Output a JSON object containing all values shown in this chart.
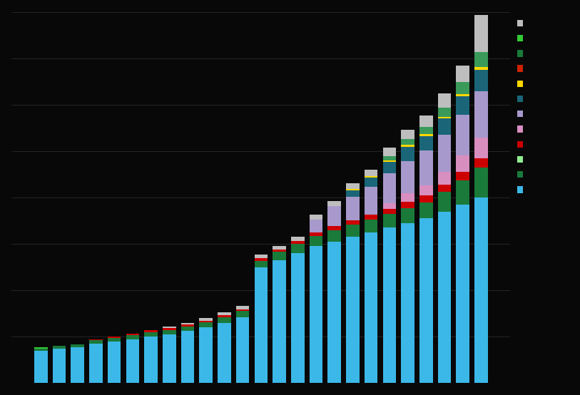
{
  "colors": {
    "light_blue": "#3BB8E8",
    "light_green": "#90EE90",
    "dark_green": "#1A7A3A",
    "red": "#CC0000",
    "pink": "#D98EC0",
    "purple": "#A899CC",
    "teal": "#1A6678",
    "yellow": "#FFD700",
    "med_green": "#3A9A5A",
    "light_gray": "#BEBEBE",
    "orange_red": "#CC2200",
    "bright_green": "#33CC33"
  },
  "bar_data": [
    {
      "blue": 1.4,
      "dark_green": 0.1,
      "red": 0.0,
      "orange_red": 0.0,
      "pink": 0.0,
      "purple": 0.0,
      "teal": 0.0,
      "yellow": 0.0,
      "med_green": 0.0,
      "bright_green": 0.05,
      "gray": 0.0
    },
    {
      "blue": 1.5,
      "dark_green": 0.1,
      "red": 0.0,
      "orange_red": 0.0,
      "pink": 0.0,
      "purple": 0.0,
      "teal": 0.0,
      "yellow": 0.0,
      "med_green": 0.0,
      "bright_green": 0.0,
      "gray": 0.0
    },
    {
      "blue": 1.55,
      "dark_green": 0.12,
      "red": 0.0,
      "orange_red": 0.0,
      "pink": 0.0,
      "purple": 0.0,
      "teal": 0.0,
      "yellow": 0.0,
      "med_green": 0.0,
      "bright_green": 0.0,
      "gray": 0.0
    },
    {
      "blue": 1.7,
      "dark_green": 0.15,
      "red": 0.03,
      "orange_red": 0.0,
      "pink": 0.0,
      "purple": 0.0,
      "teal": 0.0,
      "yellow": 0.0,
      "med_green": 0.0,
      "bright_green": 0.0,
      "gray": 0.0
    },
    {
      "blue": 1.8,
      "dark_green": 0.15,
      "red": 0.05,
      "orange_red": 0.0,
      "pink": 0.0,
      "purple": 0.0,
      "teal": 0.0,
      "yellow": 0.0,
      "med_green": 0.0,
      "bright_green": 0.0,
      "gray": 0.0
    },
    {
      "blue": 1.9,
      "dark_green": 0.18,
      "red": 0.05,
      "orange_red": 0.0,
      "pink": 0.0,
      "purple": 0.0,
      "teal": 0.0,
      "yellow": 0.0,
      "med_green": 0.0,
      "bright_green": 0.0,
      "gray": 0.0
    },
    {
      "blue": 2.0,
      "dark_green": 0.2,
      "red": 0.08,
      "orange_red": 0.0,
      "pink": 0.0,
      "purple": 0.0,
      "teal": 0.0,
      "yellow": 0.0,
      "med_green": 0.0,
      "bright_green": 0.0,
      "gray": 0.0
    },
    {
      "blue": 2.1,
      "dark_green": 0.2,
      "red": 0.08,
      "orange_red": 0.0,
      "pink": 0.0,
      "purple": 0.0,
      "teal": 0.0,
      "yellow": 0.0,
      "med_green": 0.0,
      "bright_green": 0.0,
      "gray": 0.05
    },
    {
      "blue": 2.25,
      "dark_green": 0.2,
      "red": 0.08,
      "orange_red": 0.0,
      "pink": 0.0,
      "purple": 0.0,
      "teal": 0.0,
      "yellow": 0.0,
      "med_green": 0.0,
      "bright_green": 0.0,
      "gray": 0.07
    },
    {
      "blue": 2.4,
      "dark_green": 0.22,
      "red": 0.08,
      "orange_red": 0.0,
      "pink": 0.0,
      "purple": 0.0,
      "teal": 0.0,
      "yellow": 0.0,
      "med_green": 0.0,
      "bright_green": 0.0,
      "gray": 0.1
    },
    {
      "blue": 2.6,
      "dark_green": 0.25,
      "red": 0.08,
      "orange_red": 0.0,
      "pink": 0.0,
      "purple": 0.0,
      "teal": 0.0,
      "yellow": 0.0,
      "med_green": 0.0,
      "bright_green": 0.0,
      "gray": 0.12
    },
    {
      "blue": 2.85,
      "dark_green": 0.25,
      "red": 0.08,
      "orange_red": 0.0,
      "pink": 0.0,
      "purple": 0.0,
      "teal": 0.0,
      "yellow": 0.0,
      "med_green": 0.0,
      "bright_green": 0.0,
      "gray": 0.15
    },
    {
      "blue": 5.0,
      "dark_green": 0.28,
      "red": 0.1,
      "orange_red": 0.0,
      "pink": 0.0,
      "purple": 0.0,
      "teal": 0.0,
      "yellow": 0.0,
      "med_green": 0.0,
      "bright_green": 0.0,
      "gray": 0.15
    },
    {
      "blue": 5.3,
      "dark_green": 0.35,
      "red": 0.12,
      "orange_red": 0.0,
      "pink": 0.0,
      "purple": 0.0,
      "teal": 0.0,
      "yellow": 0.0,
      "med_green": 0.0,
      "bright_green": 0.0,
      "gray": 0.15
    },
    {
      "blue": 5.6,
      "dark_green": 0.4,
      "red": 0.12,
      "orange_red": 0.0,
      "pink": 0.0,
      "purple": 0.0,
      "teal": 0.0,
      "yellow": 0.0,
      "med_green": 0.0,
      "bright_green": 0.0,
      "gray": 0.18
    },
    {
      "blue": 5.9,
      "dark_green": 0.45,
      "red": 0.15,
      "orange_red": 0.0,
      "pink": 0.0,
      "purple": 0.55,
      "teal": 0.0,
      "yellow": 0.0,
      "med_green": 0.0,
      "bright_green": 0.0,
      "gray": 0.2
    },
    {
      "blue": 6.1,
      "dark_green": 0.5,
      "red": 0.18,
      "orange_red": 0.0,
      "pink": 0.0,
      "purple": 0.85,
      "teal": 0.0,
      "yellow": 0.0,
      "med_green": 0.0,
      "bright_green": 0.0,
      "gray": 0.22
    },
    {
      "blue": 6.3,
      "dark_green": 0.52,
      "red": 0.2,
      "orange_red": 0.0,
      "pink": 0.0,
      "purple": 1.0,
      "teal": 0.3,
      "yellow": 0.04,
      "med_green": 0.0,
      "bright_green": 0.0,
      "gray": 0.25
    },
    {
      "blue": 6.5,
      "dark_green": 0.55,
      "red": 0.2,
      "orange_red": 0.0,
      "pink": 0.0,
      "purple": 1.2,
      "teal": 0.42,
      "yellow": 0.04,
      "med_green": 0.0,
      "bright_green": 0.0,
      "gray": 0.3
    },
    {
      "blue": 6.7,
      "dark_green": 0.6,
      "red": 0.2,
      "orange_red": 0.0,
      "pink": 0.25,
      "purple": 1.3,
      "teal": 0.5,
      "yellow": 0.04,
      "med_green": 0.2,
      "bright_green": 0.0,
      "gray": 0.35
    },
    {
      "blue": 6.9,
      "dark_green": 0.65,
      "red": 0.28,
      "orange_red": 0.0,
      "pink": 0.35,
      "purple": 1.4,
      "teal": 0.6,
      "yellow": 0.08,
      "med_green": 0.25,
      "bright_green": 0.0,
      "gray": 0.42
    },
    {
      "blue": 7.1,
      "dark_green": 0.7,
      "red": 0.28,
      "orange_red": 0.0,
      "pink": 0.45,
      "purple": 1.5,
      "teal": 0.62,
      "yellow": 0.08,
      "med_green": 0.3,
      "bright_green": 0.0,
      "gray": 0.5
    },
    {
      "blue": 7.4,
      "dark_green": 0.85,
      "red": 0.3,
      "orange_red": 0.0,
      "pink": 0.55,
      "purple": 1.6,
      "teal": 0.7,
      "yellow": 0.08,
      "med_green": 0.4,
      "bright_green": 0.0,
      "gray": 0.6
    },
    {
      "blue": 7.7,
      "dark_green": 1.05,
      "red": 0.35,
      "orange_red": 0.0,
      "pink": 0.7,
      "purple": 1.75,
      "teal": 0.8,
      "yellow": 0.12,
      "med_green": 0.5,
      "bright_green": 0.0,
      "gray": 0.72
    },
    {
      "blue": 8.0,
      "dark_green": 1.3,
      "red": 0.38,
      "orange_red": 0.0,
      "pink": 0.9,
      "purple": 2.0,
      "teal": 0.92,
      "yellow": 0.12,
      "med_green": 0.65,
      "bright_green": 0.0,
      "gray": 1.6
    }
  ],
  "legend_colors_top_to_bottom": [
    "#BEBEBE",
    "#33CC33",
    "#1A7A3A",
    "#CC2200",
    "#FFD700",
    "#1A6678",
    "#A899CC",
    "#D98EC0",
    "#CC0000",
    "#90EE90",
    "#1A7A3A",
    "#3BB8E8"
  ],
  "ylim": [
    0,
    16
  ],
  "background_color": "#080808",
  "bar_width": 0.72,
  "grid_color": "#2a2a2a"
}
